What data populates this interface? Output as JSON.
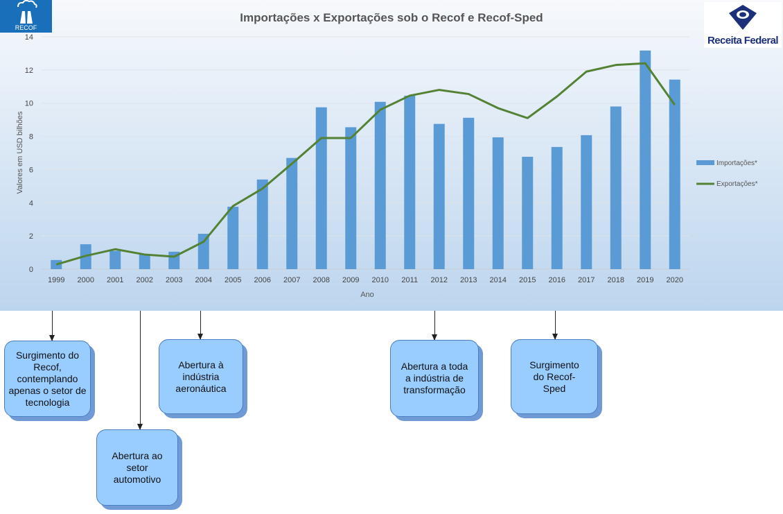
{
  "chart_data": {
    "type": "bar",
    "title": "Importações  x Exportações  sob o Recof e Recof-Sped",
    "xlabel": "Ano",
    "ylabel": "Valores em USD bilhões",
    "ylim": [
      0,
      14
    ],
    "yticks": [
      0,
      2,
      4,
      6,
      8,
      10,
      12,
      14
    ],
    "grid": true,
    "legend_position": "right",
    "categories": [
      "1999",
      "2000",
      "2001",
      "2002",
      "2003",
      "2004",
      "2005",
      "2006",
      "2007",
      "2008",
      "2009",
      "2010",
      "2011",
      "2012",
      "2013",
      "2014",
      "2015",
      "2016",
      "2017",
      "2018",
      "2019",
      "2020"
    ],
    "series": [
      {
        "name": "Importações*",
        "type": "bar",
        "color": "#5b9bd5",
        "values": [
          0.55,
          1.5,
          1.1,
          0.9,
          1.05,
          2.13,
          3.76,
          5.4,
          6.7,
          9.75,
          8.55,
          10.08,
          10.45,
          8.75,
          9.12,
          7.94,
          6.77,
          7.36,
          8.07,
          9.8,
          13.17,
          11.42
        ]
      },
      {
        "name": "Exportações*",
        "type": "line",
        "color": "#548235",
        "values": [
          0.28,
          0.8,
          1.2,
          0.88,
          0.75,
          1.65,
          3.8,
          4.85,
          6.35,
          7.9,
          7.9,
          9.6,
          10.45,
          10.8,
          10.55,
          9.7,
          9.1,
          10.4,
          11.9,
          12.3,
          12.4,
          9.9
        ]
      }
    ]
  },
  "logos": {
    "recof": "RECOF",
    "receita": "Receita Federal"
  },
  "callouts": [
    {
      "text": "Surgimento do Recof, contemplando apenas o setor de tecnologia",
      "year": "1999"
    },
    {
      "text": "Abertura ao setor automotivo",
      "year": "2002"
    },
    {
      "text": "Abertura à indústria aeronáutica",
      "year": "2004"
    },
    {
      "text": "Abertura a toda a indústria de transformação",
      "year": "2012"
    },
    {
      "text": "Surgimento do Recof-Sped",
      "year": "2016"
    }
  ]
}
